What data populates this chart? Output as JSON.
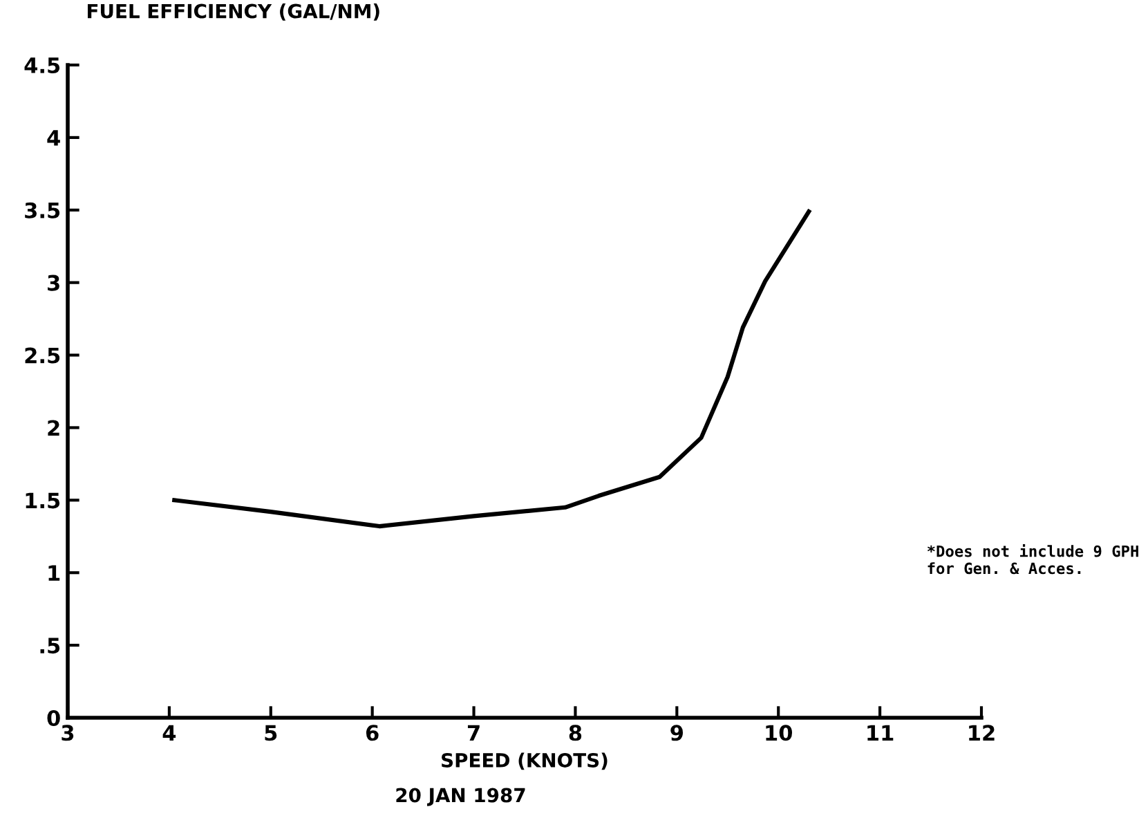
{
  "chart_data": {
    "type": "line",
    "ylabel": "FUEL EFFICIENCY (GAL/NM)",
    "xlabel": "SPEED (KNOTS)",
    "subtitle": "20 JAN 1987",
    "annotations": [
      "*Does not include 9 GPH\nfor Gen. & Acces."
    ],
    "x": [
      4.05,
      5.0,
      6.07,
      7.0,
      7.9,
      8.23,
      8.83,
      9.24,
      9.5,
      9.65,
      9.87,
      10.3
    ],
    "series": [
      {
        "color": "#000000",
        "values": [
          1.5,
          1.42,
          1.32,
          1.39,
          1.45,
          1.53,
          1.66,
          1.93,
          2.35,
          2.69,
          3.01,
          3.49
        ]
      }
    ],
    "xlim": [
      3,
      12
    ],
    "ylim": [
      0,
      4.5
    ],
    "xticks": [
      3,
      4,
      5,
      6,
      7,
      8,
      9,
      10,
      11,
      12
    ],
    "yticks": [
      0,
      {
        "value": 0.5,
        "label": ".5"
      },
      1,
      1.5,
      2,
      2.5,
      3,
      3.5,
      4,
      4.5
    ],
    "grid": false,
    "legend": false,
    "marker": "none",
    "line_style": "solid"
  }
}
